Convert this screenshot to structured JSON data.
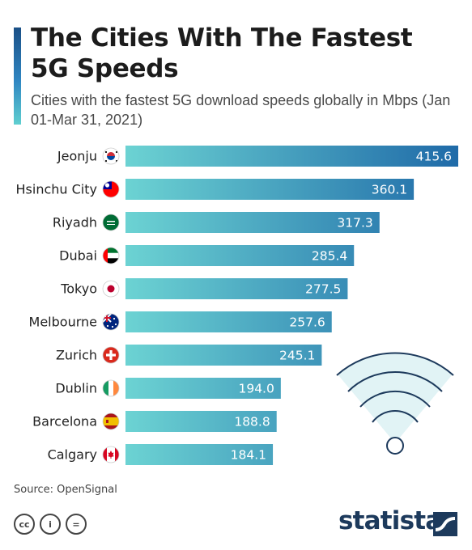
{
  "header": {
    "title": "The Cities With The Fastest 5G Speeds",
    "subtitle": "Cities with the fastest 5G download speeds globally in Mbps (Jan 01-Mar 31, 2021)"
  },
  "chart_data": {
    "type": "bar",
    "orientation": "horizontal",
    "title": "The Cities With The Fastest 5G Speeds",
    "subtitle": "Cities with the fastest 5G download speeds globally in Mbps (Jan 01-Mar 31, 2021)",
    "categories": [
      "Jeonju",
      "Hsinchu City",
      "Riyadh",
      "Dubai",
      "Tokyo",
      "Melbourne",
      "Zurich",
      "Dublin",
      "Barcelona",
      "Calgary"
    ],
    "values": [
      415.6,
      360.1,
      317.3,
      285.4,
      277.5,
      257.6,
      245.1,
      194.0,
      188.8,
      184.1
    ],
    "value_labels": [
      "415.6",
      "360.1",
      "317.3",
      "285.4",
      "277.5",
      "257.6",
      "245.1",
      "194.0",
      "188.8",
      "184.1"
    ],
    "flags": [
      "south-korea-flag",
      "taiwan-flag",
      "saudi-arabia-flag",
      "uae-flag",
      "japan-flag",
      "australia-flag",
      "switzerland-flag",
      "ireland-flag",
      "spain-flag",
      "canada-flag"
    ],
    "xlim": [
      0,
      415.6
    ],
    "grid": false,
    "legend": "none",
    "colors": {
      "bar_start": "#6cd3d3",
      "bar_end": "#1f6aa8"
    }
  },
  "decoration": {
    "icon": "wifi-signal-icon"
  },
  "footer": {
    "source": "Source: OpenSignal",
    "license_icons": [
      "cc",
      "i",
      "="
    ],
    "brand": "statista"
  },
  "colors": {
    "accent_top": "#1a4f86",
    "accent_bottom": "#5fcfd0",
    "brand": "#1d3a5c"
  }
}
